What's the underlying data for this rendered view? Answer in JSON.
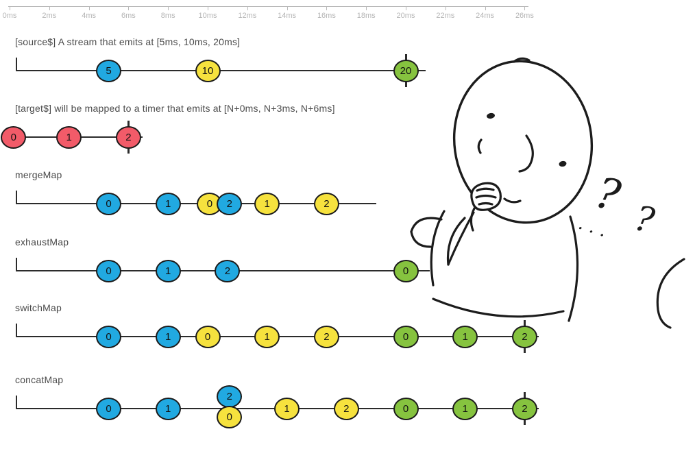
{
  "ruler": {
    "step_ms": 2,
    "labels": [
      "0ms",
      "2ms",
      "4ms",
      "6ms",
      "8ms",
      "10ms",
      "12ms",
      "14ms",
      "16ms",
      "18ms",
      "20ms",
      "22ms",
      "24ms",
      "26ms"
    ]
  },
  "colors": {
    "blue": "#21a9e1",
    "yellow": "#f6e23e",
    "green": "#86c33f",
    "red": "#f25b69",
    "stroke": "#1b1b1b",
    "line": "#2b2b2b",
    "ruler_text": "#b4b4b4",
    "label_text": "#4a4a4a"
  },
  "sections": [
    {
      "label": "[source$] A stream that emits at [5ms, 10ms, 20ms]",
      "start_tick": true,
      "line_start_ms": 0.3,
      "line_end_ms": 21.0,
      "complete_ms": 20,
      "marbles": [
        {
          "value": "5",
          "ms": 5,
          "color": "blue"
        },
        {
          "value": "10",
          "ms": 10,
          "color": "yellow"
        },
        {
          "value": "20",
          "ms": 20,
          "color": "green"
        }
      ]
    },
    {
      "label": "[target$] will be mapped to a timer that emits at [N+0ms, N+3ms, N+6ms]",
      "start_tick": false,
      "line_start_ms": -0.45,
      "line_end_ms": 6.7,
      "complete_ms": 6,
      "marbles": [
        {
          "value": "0",
          "ms": 0.2,
          "color": "red"
        },
        {
          "value": "1",
          "ms": 3,
          "color": "red"
        },
        {
          "value": "2",
          "ms": 6,
          "color": "red"
        }
      ]
    },
    {
      "label": "mergeMap",
      "start_tick": true,
      "line_start_ms": 0.3,
      "line_end_ms": 18.5,
      "complete_ms": null,
      "marbles": [
        {
          "value": "0",
          "ms": 5,
          "color": "blue"
        },
        {
          "value": "1",
          "ms": 8,
          "color": "blue"
        },
        {
          "value": "0",
          "ms": 10.1,
          "color": "yellow"
        },
        {
          "value": "2",
          "ms": 11.1,
          "color": "blue"
        },
        {
          "value": "1",
          "ms": 13,
          "color": "yellow"
        },
        {
          "value": "2",
          "ms": 16,
          "color": "yellow"
        }
      ]
    },
    {
      "label": "exhaustMap",
      "start_tick": true,
      "line_start_ms": 0.3,
      "line_end_ms": 21.2,
      "complete_ms": null,
      "marbles": [
        {
          "value": "0",
          "ms": 5,
          "color": "blue"
        },
        {
          "value": "1",
          "ms": 8,
          "color": "blue"
        },
        {
          "value": "2",
          "ms": 11,
          "color": "blue"
        },
        {
          "value": "0",
          "ms": 20,
          "color": "green"
        }
      ]
    },
    {
      "label": "switchMap",
      "start_tick": true,
      "line_start_ms": 0.3,
      "line_end_ms": 26.7,
      "complete_ms": 26,
      "marbles": [
        {
          "value": "0",
          "ms": 5,
          "color": "blue"
        },
        {
          "value": "1",
          "ms": 8,
          "color": "blue"
        },
        {
          "value": "0",
          "ms": 10,
          "color": "yellow"
        },
        {
          "value": "1",
          "ms": 13,
          "color": "yellow"
        },
        {
          "value": "2",
          "ms": 16,
          "color": "yellow"
        },
        {
          "value": "0",
          "ms": 20,
          "color": "green"
        },
        {
          "value": "1",
          "ms": 23,
          "color": "green"
        },
        {
          "value": "2",
          "ms": 26,
          "color": "green"
        }
      ]
    },
    {
      "label": "concatMap",
      "start_tick": true,
      "line_start_ms": 0.3,
      "line_end_ms": 26.7,
      "complete_ms": 26,
      "marbles": [
        {
          "value": "0",
          "ms": 5,
          "color": "blue"
        },
        {
          "value": "1",
          "ms": 8,
          "color": "blue"
        },
        {
          "value": "2",
          "ms": 11.1,
          "color": "blue",
          "offset": "above"
        },
        {
          "value": "0",
          "ms": 11.1,
          "color": "yellow",
          "offset": "below"
        },
        {
          "value": "1",
          "ms": 14,
          "color": "yellow"
        },
        {
          "value": "2",
          "ms": 17,
          "color": "yellow"
        },
        {
          "value": "0",
          "ms": 20,
          "color": "green"
        },
        {
          "value": "1",
          "ms": 23,
          "color": "green"
        },
        {
          "value": "2",
          "ms": 26,
          "color": "green"
        }
      ]
    }
  ],
  "illustration": {
    "question_marks": [
      "?",
      "?"
    ],
    "dots": "· · ·"
  }
}
